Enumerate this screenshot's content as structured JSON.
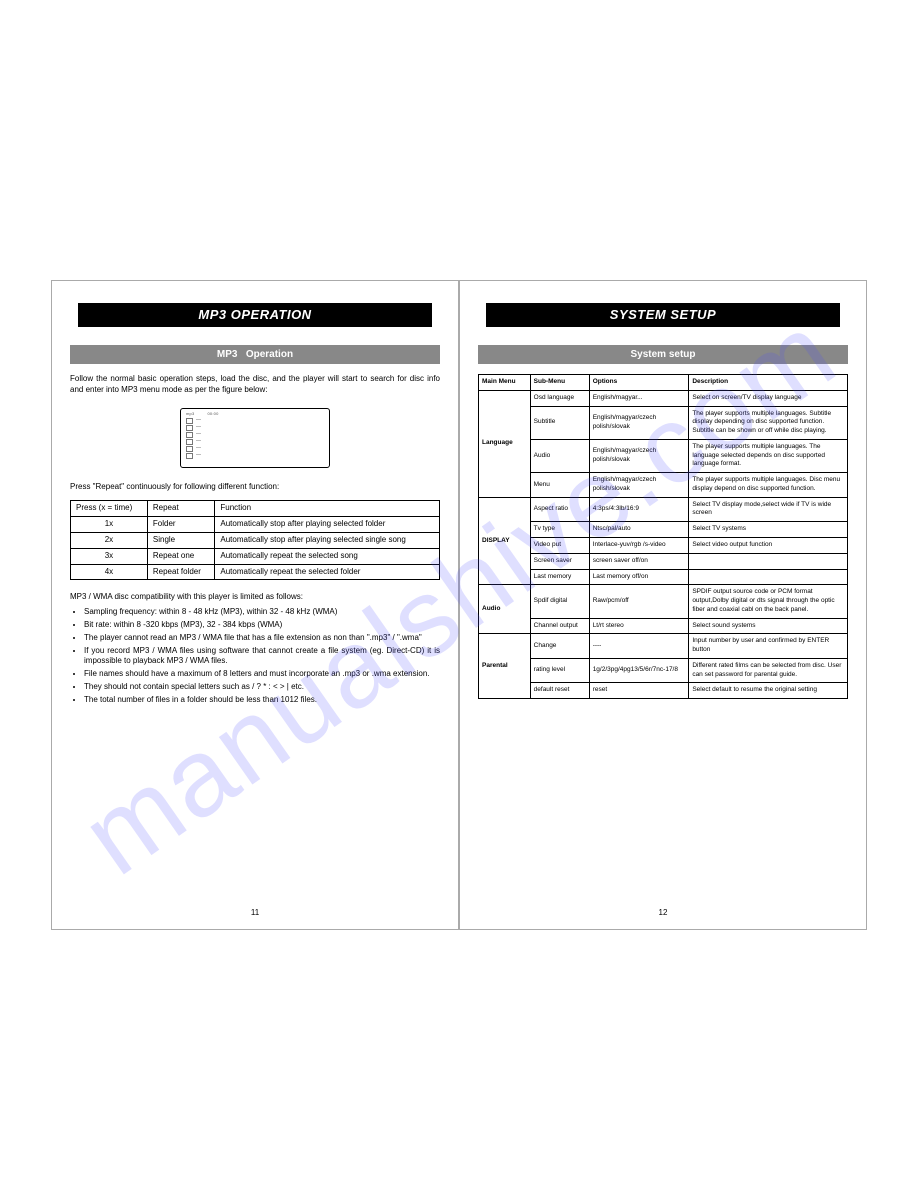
{
  "watermark": "manualshive.com",
  "left": {
    "title": "MP3 OPERATION",
    "subtitle_prefix": "MP3",
    "subtitle_suffix": "Operation",
    "intro": "Follow the normal basic operation steps, load the disc, and the player will start to search for disc info and enter into MP3 menu mode as per the figure below:",
    "repeat_intro": "Press \"Repeat\" continuously for following different function:",
    "table": {
      "headers": [
        "Press (x = time)",
        "Repeat",
        "Function"
      ],
      "rows": [
        [
          "1x",
          "Folder",
          "Automatically stop after playing selected folder"
        ],
        [
          "2x",
          "Single",
          "Automatically stop after playing selected single song"
        ],
        [
          "3x",
          "Repeat one",
          "Automatically repeat the selected song"
        ],
        [
          "4x",
          "Repeat folder",
          "Automatically repeat the selected folder"
        ]
      ]
    },
    "compat_intro": "MP3 / WMA disc compatibility with this player is limited as follows:",
    "bullets": [
      "Sampling frequency: within 8 - 48 kHz (MP3), within 32 - 48 kHz (WMA)",
      "Bit rate: within 8 -320 kbps (MP3), 32 - 384 kbps (WMA)",
      "The player cannot read an MP3 / WMA file that has a file extension as non than \".mp3\" / \".wma\"",
      "If you record MP3 / WMA files using software that cannot create a file system (eg. Direct-CD) it is impossible to playback MP3 / WMA files.",
      "File names should have a maximum of 8 letters and must incorporate an .mp3 or .wma extension.",
      "They should not contain special letters such as / ? * : < > | etc.",
      "The total number of files in a folder should be less than 1012 files."
    ],
    "pageno": "11"
  },
  "right": {
    "title": "SYSTEM SETUP",
    "subtitle": "System  setup",
    "headers": [
      "Main Menu",
      "Sub-Menu",
      "Options",
      "Description"
    ],
    "groups": [
      {
        "main": "Language",
        "rows": [
          {
            "sub": "Osd language",
            "opt": "English/magyar...",
            "desc": "Select on screen/TV display language"
          },
          {
            "sub": "Subtitle",
            "opt": "English/magyar/czech polish/slovak",
            "desc": "The player supports multiple languages. Subtitle display depending on disc supported function. Subtitle can be shown or off while disc playing.",
            "optCenter": true
          },
          {
            "sub": "Audio",
            "opt": "English/magyar/czech polish/slovak",
            "desc": "The player supports multiple languages. The language selected depends on disc supported language format.",
            "optCenter": true,
            "descJust": true
          },
          {
            "sub": "Menu",
            "opt": "English/magyar/czech polish/slovak",
            "desc": "The player supports multiple languages. Disc menu display depend on disc supported function.",
            "optCenter": true
          }
        ]
      },
      {
        "main": "DISPLAY",
        "rows": [
          {
            "sub": "Aspect ratio",
            "opt": "4:3ps/4:3lb/16:9",
            "desc": "Select TV display mode,select wide if TV is wide screen"
          },
          {
            "sub": "Tv type",
            "opt": "Ntsc/pal/auto",
            "desc": "Select TV systems"
          },
          {
            "sub": "Video put",
            "opt": "Interlace-yuv/rgb /s-video",
            "desc": "Select video output function"
          },
          {
            "sub": "Screen saver",
            "opt": "screen saver off/on",
            "desc": ""
          },
          {
            "sub": "Last memory",
            "opt": "Last memory   off/on",
            "desc": ""
          }
        ]
      },
      {
        "main": "Audio",
        "rows": [
          {
            "sub": "Spdif digital",
            "opt": "Raw/pcm/off",
            "desc": "SPDIF output source code or PCM format output,Dolby digital or dts signal through the optic fiber and coaxial cabl on the back panel.",
            "descJust": true
          },
          {
            "sub": "Channel output",
            "opt": "Lt/rt    stereo",
            "desc": "Select sound systems"
          }
        ]
      },
      {
        "main": "Parental",
        "rows": [
          {
            "sub": "Change",
            "opt": "----",
            "desc": "Input number by user and confirmed by ENTER button"
          },
          {
            "sub": "rating level",
            "opt": "1g/2/3pg/4pg13/5/6r/7nc-17/8",
            "desc": "Different rated films can be selected from disc. User can set password for parental guide."
          },
          {
            "sub": "default reset",
            "opt": "reset",
            "desc": "Select default to resume the original setting"
          }
        ]
      }
    ],
    "pageno": "12"
  }
}
